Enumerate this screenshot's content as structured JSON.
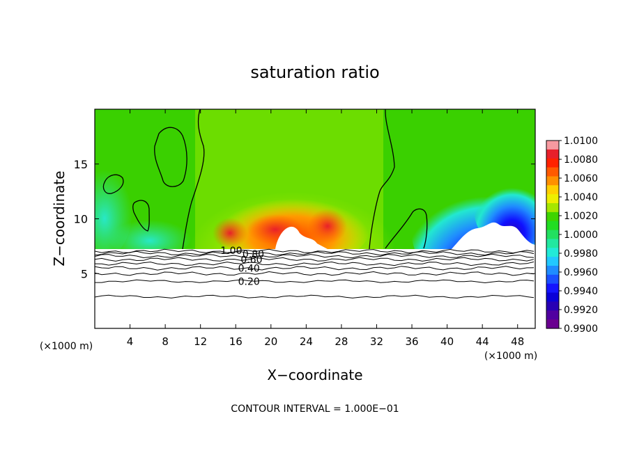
{
  "chart_data": {
    "type": "contour",
    "title": "saturation ratio",
    "xlabel": "X−coordinate",
    "ylabel": "Z−coordinate",
    "x_unit_label": "(×1000 m)",
    "z_unit_label": "(×1000 m)",
    "footer": "CONTOUR INTERVAL = 1.000E−01",
    "xlim": [
      0,
      50
    ],
    "ylim": [
      0,
      20
    ],
    "x_ticks": [
      4,
      8,
      12,
      16,
      20,
      24,
      28,
      32,
      36,
      40,
      44,
      48
    ],
    "y_ticks": [
      5,
      10,
      15
    ],
    "colorbar": {
      "ticks": [
        "1.0100",
        "1.0080",
        "1.0060",
        "1.0040",
        "1.0020",
        "1.0000",
        "0.9980",
        "0.9960",
        "0.9940",
        "0.9920",
        "0.9900"
      ],
      "colors": [
        "#f79aa0",
        "#e8202b",
        "#ff2200",
        "#ff5a00",
        "#ff9000",
        "#ffd000",
        "#eeee00",
        "#a6e600",
        "#3ed400",
        "#22dd22",
        "#22e060",
        "#22e8a0",
        "#22ead8",
        "#22c8ff",
        "#1f8cff",
        "#1a50ff",
        "#1414ff",
        "#0a00d8",
        "#2800b4",
        "#5000a0",
        "#6a0090"
      ]
    },
    "contour_labels": [
      {
        "text": "1.00",
        "x": 15.5,
        "z": 7.1
      },
      {
        "text": "0.80",
        "x": 18.0,
        "z": 6.8
      },
      {
        "text": "0.60",
        "x": 17.8,
        "z": 6.3
      },
      {
        "text": "0.40",
        "x": 17.5,
        "z": 5.5
      },
      {
        "text": "0.20",
        "x": 17.5,
        "z": 4.3
      }
    ],
    "lower_lines_z": [
      7.05,
      6.85,
      6.6,
      6.3,
      5.9,
      5.5,
      5.0,
      4.3,
      2.9
    ]
  }
}
